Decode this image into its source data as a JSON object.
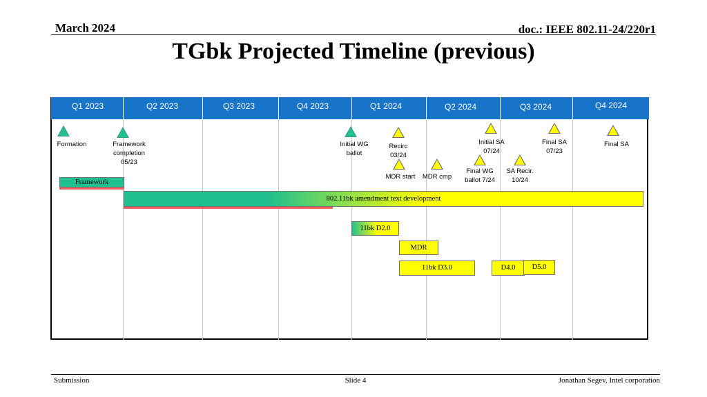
{
  "header": {
    "date": "March 2024",
    "doc": "doc.: IEEE 802.11-24/220r1"
  },
  "title": "TGbk Projected Timeline (previous)",
  "quarters": [
    "Q1 2023",
    "Q2 2023",
    "Q3 2023",
    "Q4 2023",
    "Q1 2024",
    "Q2 2024",
    "Q3 2024",
    "Q4 2024"
  ],
  "milestones": {
    "formation": "Formation",
    "framework_completion": [
      "Framework",
      "completion",
      "05/23"
    ],
    "initial_wg_ballot": [
      "Initial WG",
      "ballot"
    ],
    "recirc": [
      "Recirc",
      "03/24"
    ],
    "mdr_start": "MDR start",
    "mdr_cmp": "MDR cmp",
    "initial_sa": [
      "Initial SA",
      "07/24"
    ],
    "final_wg_ballot": [
      "Final WG",
      "ballot 7/24"
    ],
    "final_sa_0723": [
      "Final SA",
      "07/23"
    ],
    "sa_recir": [
      "SA Recir.",
      "10/24"
    ],
    "final_sa": "Final SA"
  },
  "bars": {
    "framework": "Framework",
    "amendment": "802.11bk amendment text development",
    "d20": "11bk D2.0",
    "mdr": "MDR",
    "d30": "11bk D3.0",
    "d40": "D4.0",
    "d50": "D5.0"
  },
  "colors": {
    "quarter_bar": "#1874c8",
    "green": "#20c090",
    "yellow": "#ffff00",
    "red_underline": "#f06060"
  },
  "footer": {
    "left": "Submission",
    "center": "Slide 4",
    "right": "Jonathan Segev, Intel corporation"
  }
}
